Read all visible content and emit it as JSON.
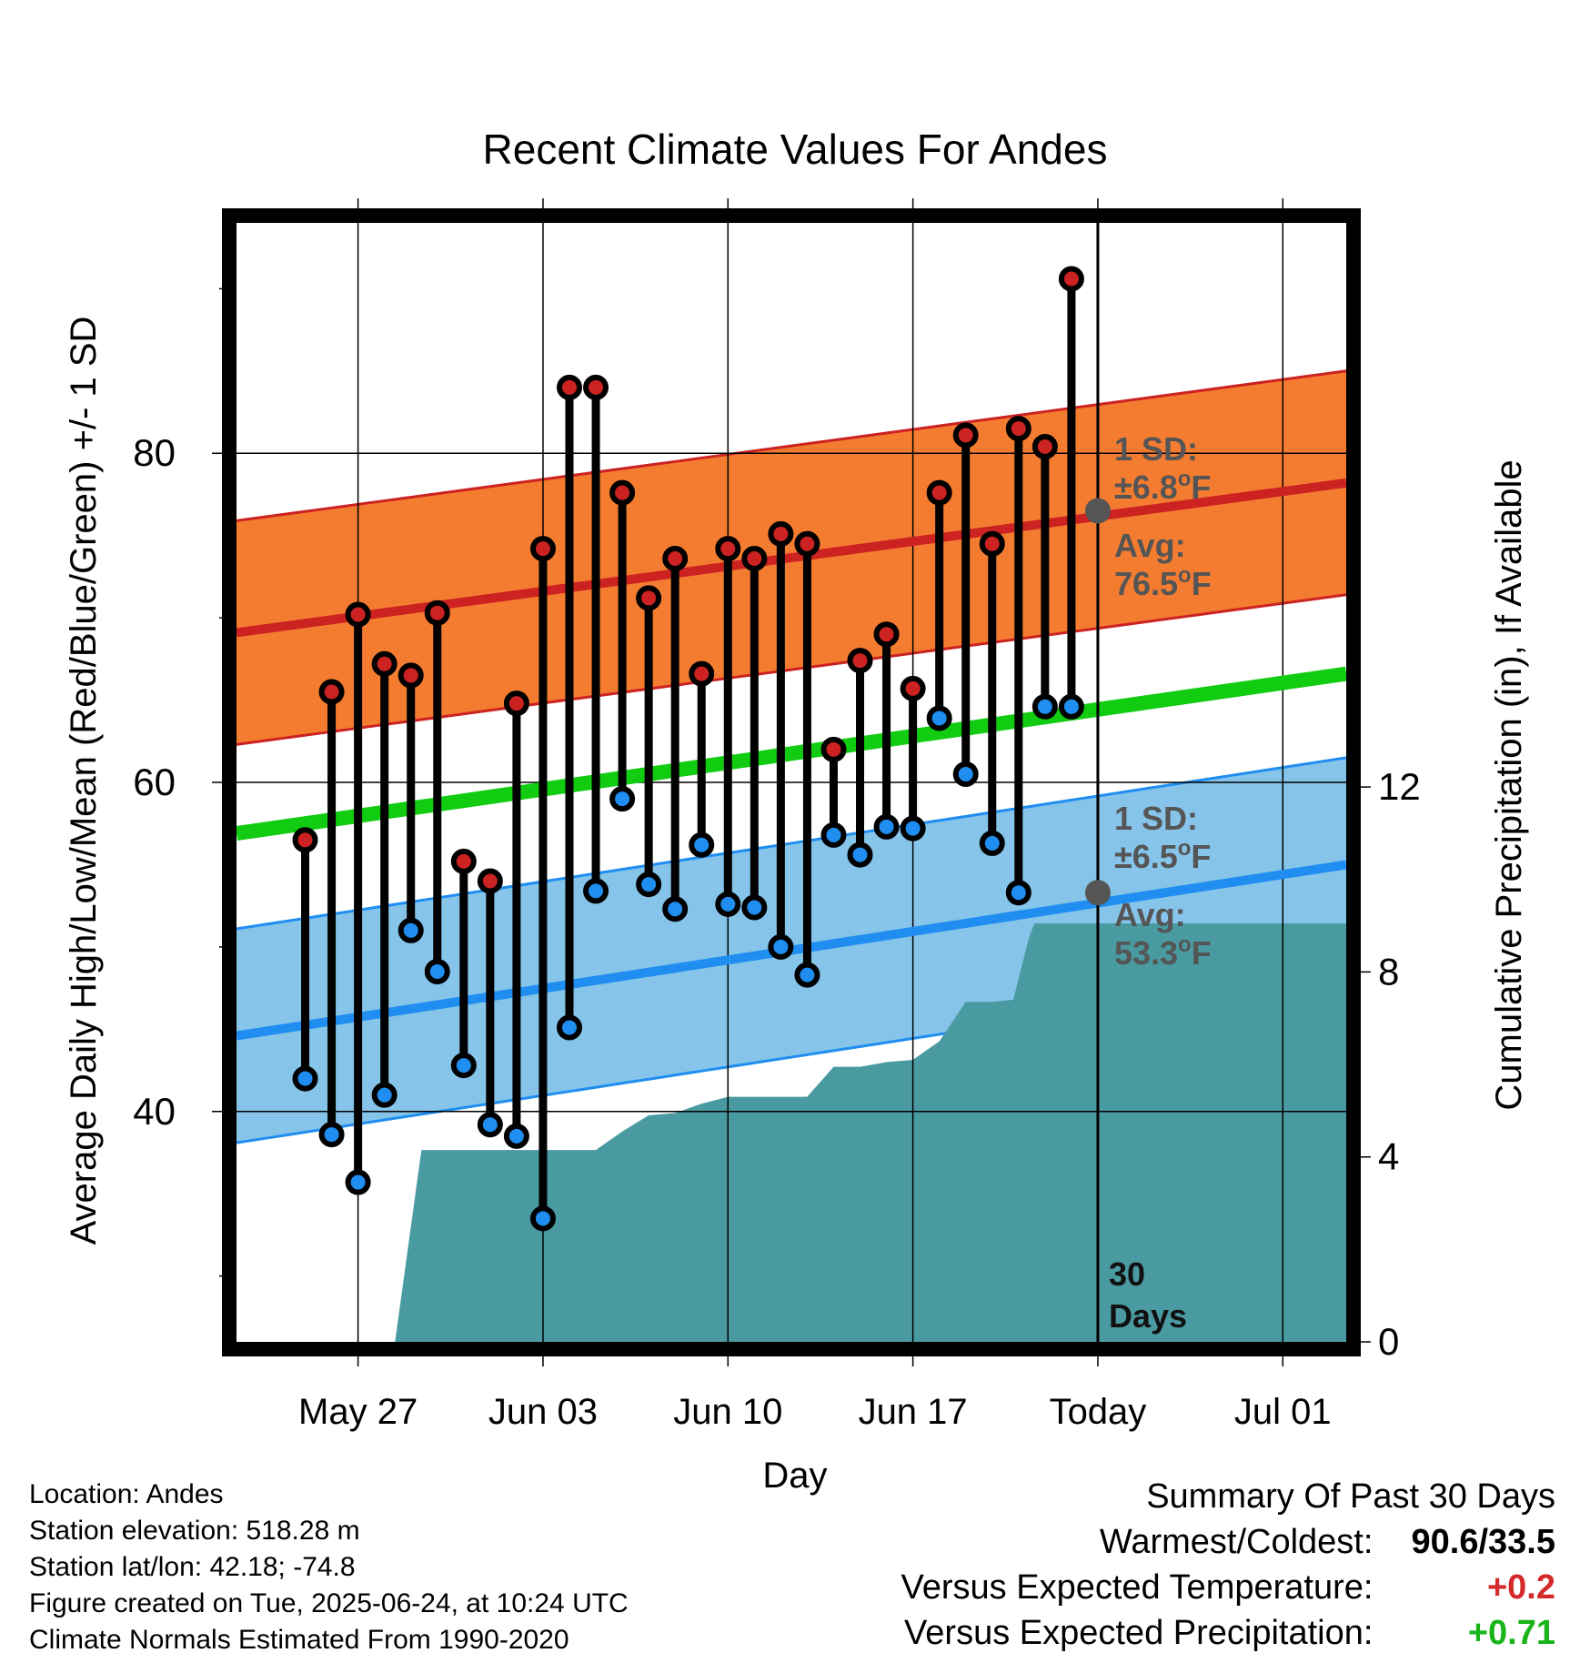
{
  "chart_data": {
    "type": "line",
    "title": "Recent Climate Values For Andes",
    "xlabel": "Day",
    "ylabel": "Average Daily High/Low/Mean (Red/Blue/Green) +/- 1 SD",
    "y2label": "Cumulative Precipitation (in), If Available",
    "xlim": [
      -2.6,
      39.4
    ],
    "ylim": [
      26,
      94
    ],
    "y2lim": [
      0,
      24.2
    ],
    "x_ticks": [
      {
        "x": 2,
        "label": "May 27"
      },
      {
        "x": 9,
        "label": "Jun 03"
      },
      {
        "x": 16,
        "label": "Jun 10"
      },
      {
        "x": 23,
        "label": "Jun 17"
      },
      {
        "x": 30,
        "label": "Today"
      },
      {
        "x": 37,
        "label": "Jul 01"
      }
    ],
    "y_ticks": [
      40,
      60,
      80
    ],
    "y_minor_ticks": [
      30,
      50,
      70,
      90
    ],
    "y2_ticks": [
      0,
      4,
      8,
      12
    ],
    "grid": true,
    "today_x": 30,
    "today_label": "30\nDays",
    "normal_high": {
      "x": [
        -2.6,
        39.4
      ],
      "avg": [
        69.1,
        78.2
      ],
      "sd": 6.8,
      "color": "#cc2222",
      "band_color": "#f47c30"
    },
    "normal_low": {
      "x": [
        -2.6,
        39.4
      ],
      "avg": [
        44.6,
        55.0
      ],
      "sd": 6.5,
      "color": "#1f8ef0",
      "band_color": "#86c4ea"
    },
    "normal_mean": {
      "x": [
        -2.6,
        39.4
      ],
      "values": [
        56.9,
        66.6
      ],
      "color": "#11cc11"
    },
    "series": [
      {
        "name": "High",
        "color": "#cc2222",
        "x": [
          0,
          1,
          2,
          3,
          4,
          5,
          6,
          7,
          8,
          9,
          10,
          11,
          12,
          13,
          14,
          15,
          16,
          17,
          18,
          19,
          20,
          21,
          22,
          23,
          24,
          25,
          26,
          27,
          28,
          29
        ],
        "values": [
          56.5,
          65.5,
          70.2,
          67.2,
          66.5,
          70.3,
          55.2,
          54.0,
          64.8,
          74.2,
          84.0,
          84.0,
          77.6,
          71.2,
          73.6,
          66.6,
          74.2,
          73.6,
          75.1,
          74.5,
          62.0,
          67.4,
          69.0,
          65.7,
          77.6,
          81.1,
          74.5,
          81.5,
          80.4,
          90.6
        ]
      },
      {
        "name": "Low",
        "color": "#1f8ef0",
        "x": [
          0,
          1,
          2,
          3,
          4,
          5,
          6,
          7,
          8,
          9,
          10,
          11,
          12,
          13,
          14,
          15,
          16,
          17,
          18,
          19,
          20,
          21,
          22,
          23,
          24,
          25,
          26,
          27,
          28,
          29
        ],
        "values": [
          42.0,
          38.6,
          35.7,
          41.0,
          51.0,
          48.5,
          42.8,
          39.2,
          38.5,
          33.5,
          45.1,
          53.4,
          59.0,
          53.8,
          52.3,
          56.2,
          52.6,
          52.4,
          50.0,
          48.3,
          56.8,
          55.6,
          57.3,
          57.2,
          63.9,
          60.5,
          56.3,
          53.3,
          64.6,
          64.6
        ]
      }
    ],
    "precip": {
      "color": "#4a9aa2",
      "x": [
        -2.6,
        3.4,
        4.4,
        9,
        10,
        11,
        12,
        13,
        14,
        15,
        16,
        17,
        18,
        19,
        20,
        21,
        22,
        23,
        24,
        25,
        26,
        26.8,
        27.4,
        27.6,
        28,
        29,
        30,
        39.4
      ],
      "values": [
        0,
        0,
        4.15,
        4.15,
        4.15,
        4.15,
        4.55,
        4.9,
        4.95,
        5.15,
        5.3,
        5.3,
        5.3,
        5.3,
        5.95,
        5.95,
        6.05,
        6.1,
        6.5,
        7.35,
        7.35,
        7.4,
        8.75,
        9.05,
        9.05,
        9.05,
        9.05,
        9.05
      ]
    },
    "annotations": {
      "high_sd": {
        "line1": "1 SD:",
        "line2": "±6.8",
        "unit": "oF"
      },
      "high_avg": {
        "line1": "Avg:",
        "line2": "76.5",
        "unit": "oF",
        "value": 76.5
      },
      "low_sd": {
        "line1": "1 SD:",
        "line2": "±6.5",
        "unit": "oF"
      },
      "low_avg": {
        "line1": "Avg:",
        "line2": "53.3",
        "unit": "oF",
        "value": 53.3
      }
    }
  },
  "footer": {
    "location": "Location: Andes",
    "elevation": "Station elevation: 518.28 m",
    "latlon": "Station lat/lon: 42.18; -74.8",
    "created": "Figure created on Tue, 2025-06-24, at 10:24 UTC",
    "normals": "Climate Normals Estimated From 1990-2020"
  },
  "summary": {
    "heading": "Summary Of Past 30 Days",
    "warm_cold_label": "Warmest/Coldest:",
    "warm_cold_value": "90.6/33.5",
    "temp_label": "Versus Expected Temperature:",
    "temp_value": "+0.2",
    "temp_color": "#d42a2a",
    "precip_label": "Versus Expected Precipitation:",
    "precip_value": "+0.71",
    "precip_color": "#18b418"
  }
}
